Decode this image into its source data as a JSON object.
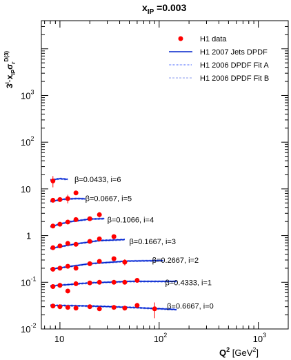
{
  "chart_data": {
    "type": "scatter",
    "title": "x_IP =0.003",
    "title_main": "x",
    "title_sub": "IP",
    "title_rest": " =0.003",
    "xlabel_main": "Q",
    "xlabel_sup": "2",
    "xlabel_rest": " [GeV",
    "xlabel_sup2": "2",
    "xlabel_end": "]",
    "ylabel": "3^i · x_IP σ_r^D(3)",
    "x_scale": "log",
    "y_scale": "log",
    "xlim": [
      6.5,
      2000
    ],
    "ylim": [
      0.01,
      40000
    ],
    "x_ticks": [
      {
        "value": 10,
        "base": "10",
        "exp": ""
      },
      {
        "value": 100,
        "base": "10",
        "exp": "2"
      },
      {
        "value": 1000,
        "base": "10",
        "exp": "3"
      }
    ],
    "y_ticks": [
      {
        "value": 0.01,
        "base": "10",
        "exp": "-2"
      },
      {
        "value": 0.1,
        "base": "10",
        "exp": "-1"
      },
      {
        "value": 1,
        "base": "1",
        "exp": ""
      },
      {
        "value": 10,
        "base": "10",
        "exp": ""
      },
      {
        "value": 100,
        "base": "10",
        "exp": "2"
      },
      {
        "value": 1000,
        "base": "10",
        "exp": "3"
      }
    ],
    "legend": [
      {
        "label": "H1 data",
        "style": "marker"
      },
      {
        "label": "H1 2007 Jets DPDF",
        "style": "solid"
      },
      {
        "label": "H1 2006 DPDF Fit A",
        "style": "dotted"
      },
      {
        "label": "H1 2006 DPDF Fit B",
        "style": "dashed"
      }
    ],
    "legend_position": "top-right",
    "colors": {
      "data": "#ff0000",
      "jets": "#0022cc",
      "fitA": "#3355ff",
      "fitB": "#8899ee"
    },
    "series": [
      {
        "label": "β=0.6667, i=0",
        "label_x": 120,
        "label_y": 0.031,
        "x": [
          8.5,
          10,
          12,
          14.5,
          20,
          25,
          35,
          45,
          60,
          90
        ],
        "y": [
          0.031,
          0.03,
          0.029,
          0.028,
          0.03,
          0.027,
          0.029,
          0.028,
          0.032,
          0.027
        ],
        "err": [
          0.003,
          0.002,
          0.002,
          0.002,
          0.002,
          0.002,
          0.002,
          0.003,
          0.004,
          0.01
        ],
        "curve": [
          [
            8,
            0.032
          ],
          [
            20,
            0.031
          ],
          [
            50,
            0.029
          ],
          [
            150,
            0.026
          ]
        ]
      },
      {
        "label": "β=0.4333, i=1",
        "label_x": 115,
        "label_y": 0.1,
        "x": [
          8.5,
          10,
          12,
          14.5,
          20,
          25,
          35,
          45,
          60
        ],
        "y": [
          0.081,
          0.086,
          0.065,
          0.093,
          0.097,
          0.1,
          0.1,
          0.1,
          0.11
        ],
        "err": [
          0.006,
          0.005,
          0.005,
          0.006,
          0.006,
          0.006,
          0.006,
          0.008,
          0.012
        ],
        "curve": [
          [
            8,
            0.083
          ],
          [
            20,
            0.097
          ],
          [
            50,
            0.104
          ],
          [
            150,
            0.104
          ]
        ]
      },
      {
        "label": "β=0.2667, i=2",
        "label_x": 85,
        "label_y": 0.3,
        "x": [
          8.5,
          10,
          12,
          14.5,
          20,
          25,
          35,
          45
        ],
        "y": [
          0.19,
          0.2,
          0.22,
          0.2,
          0.25,
          0.28,
          0.32,
          0.27
        ],
        "err": [
          0.012,
          0.012,
          0.013,
          0.013,
          0.015,
          0.017,
          0.02,
          0.04
        ],
        "curve": [
          [
            8,
            0.19
          ],
          [
            20,
            0.25
          ],
          [
            50,
            0.285
          ],
          [
            110,
            0.29
          ]
        ]
      },
      {
        "label": "β=0.1667, i=3",
        "label_x": 50,
        "label_y": 0.75,
        "x": [
          8.5,
          10,
          12,
          14.5,
          20,
          25,
          35
        ],
        "y": [
          0.55,
          0.6,
          0.68,
          0.65,
          0.75,
          0.85,
          0.95
        ],
        "err": [
          0.04,
          0.04,
          0.04,
          0.04,
          0.05,
          0.05,
          0.06
        ],
        "curve": [
          [
            8,
            0.53
          ],
          [
            15,
            0.67
          ],
          [
            25,
            0.78
          ],
          [
            45,
            0.82
          ]
        ]
      },
      {
        "label": "β=0.1066, i=4",
        "label_x": 30,
        "label_y": 2.2,
        "x": [
          8.5,
          10,
          12,
          14.5,
          20,
          25
        ],
        "y": [
          1.6,
          1.75,
          1.95,
          2.2,
          2.3,
          2.8
        ],
        "err": [
          0.1,
          0.1,
          0.12,
          0.15,
          0.15,
          0.35
        ],
        "curve": [
          [
            8,
            1.55
          ],
          [
            12,
            1.95
          ],
          [
            20,
            2.25
          ],
          [
            28,
            2.3
          ]
        ]
      },
      {
        "label": "β=0.0667, i=5",
        "label_x": 18,
        "label_y": 6.3,
        "x": [
          8.5,
          10,
          12,
          14.5
        ],
        "y": [
          5.7,
          5.9,
          6.2,
          8.2
        ],
        "err": [
          0.35,
          0.35,
          1.3,
          0.8
        ],
        "curve": [
          [
            8,
            5.4
          ],
          [
            11,
            6.0
          ],
          [
            15,
            6.2
          ],
          [
            18,
            6.1
          ]
        ]
      },
      {
        "label": "β=0.0433, i=6",
        "label_x": 14,
        "label_y": 16,
        "x": [
          8.5
        ],
        "y": [
          14.8
        ],
        "err": [
          4
        ],
        "curve": [
          [
            8,
            15.5
          ],
          [
            10,
            16.5
          ],
          [
            12,
            16
          ]
        ]
      }
    ]
  }
}
